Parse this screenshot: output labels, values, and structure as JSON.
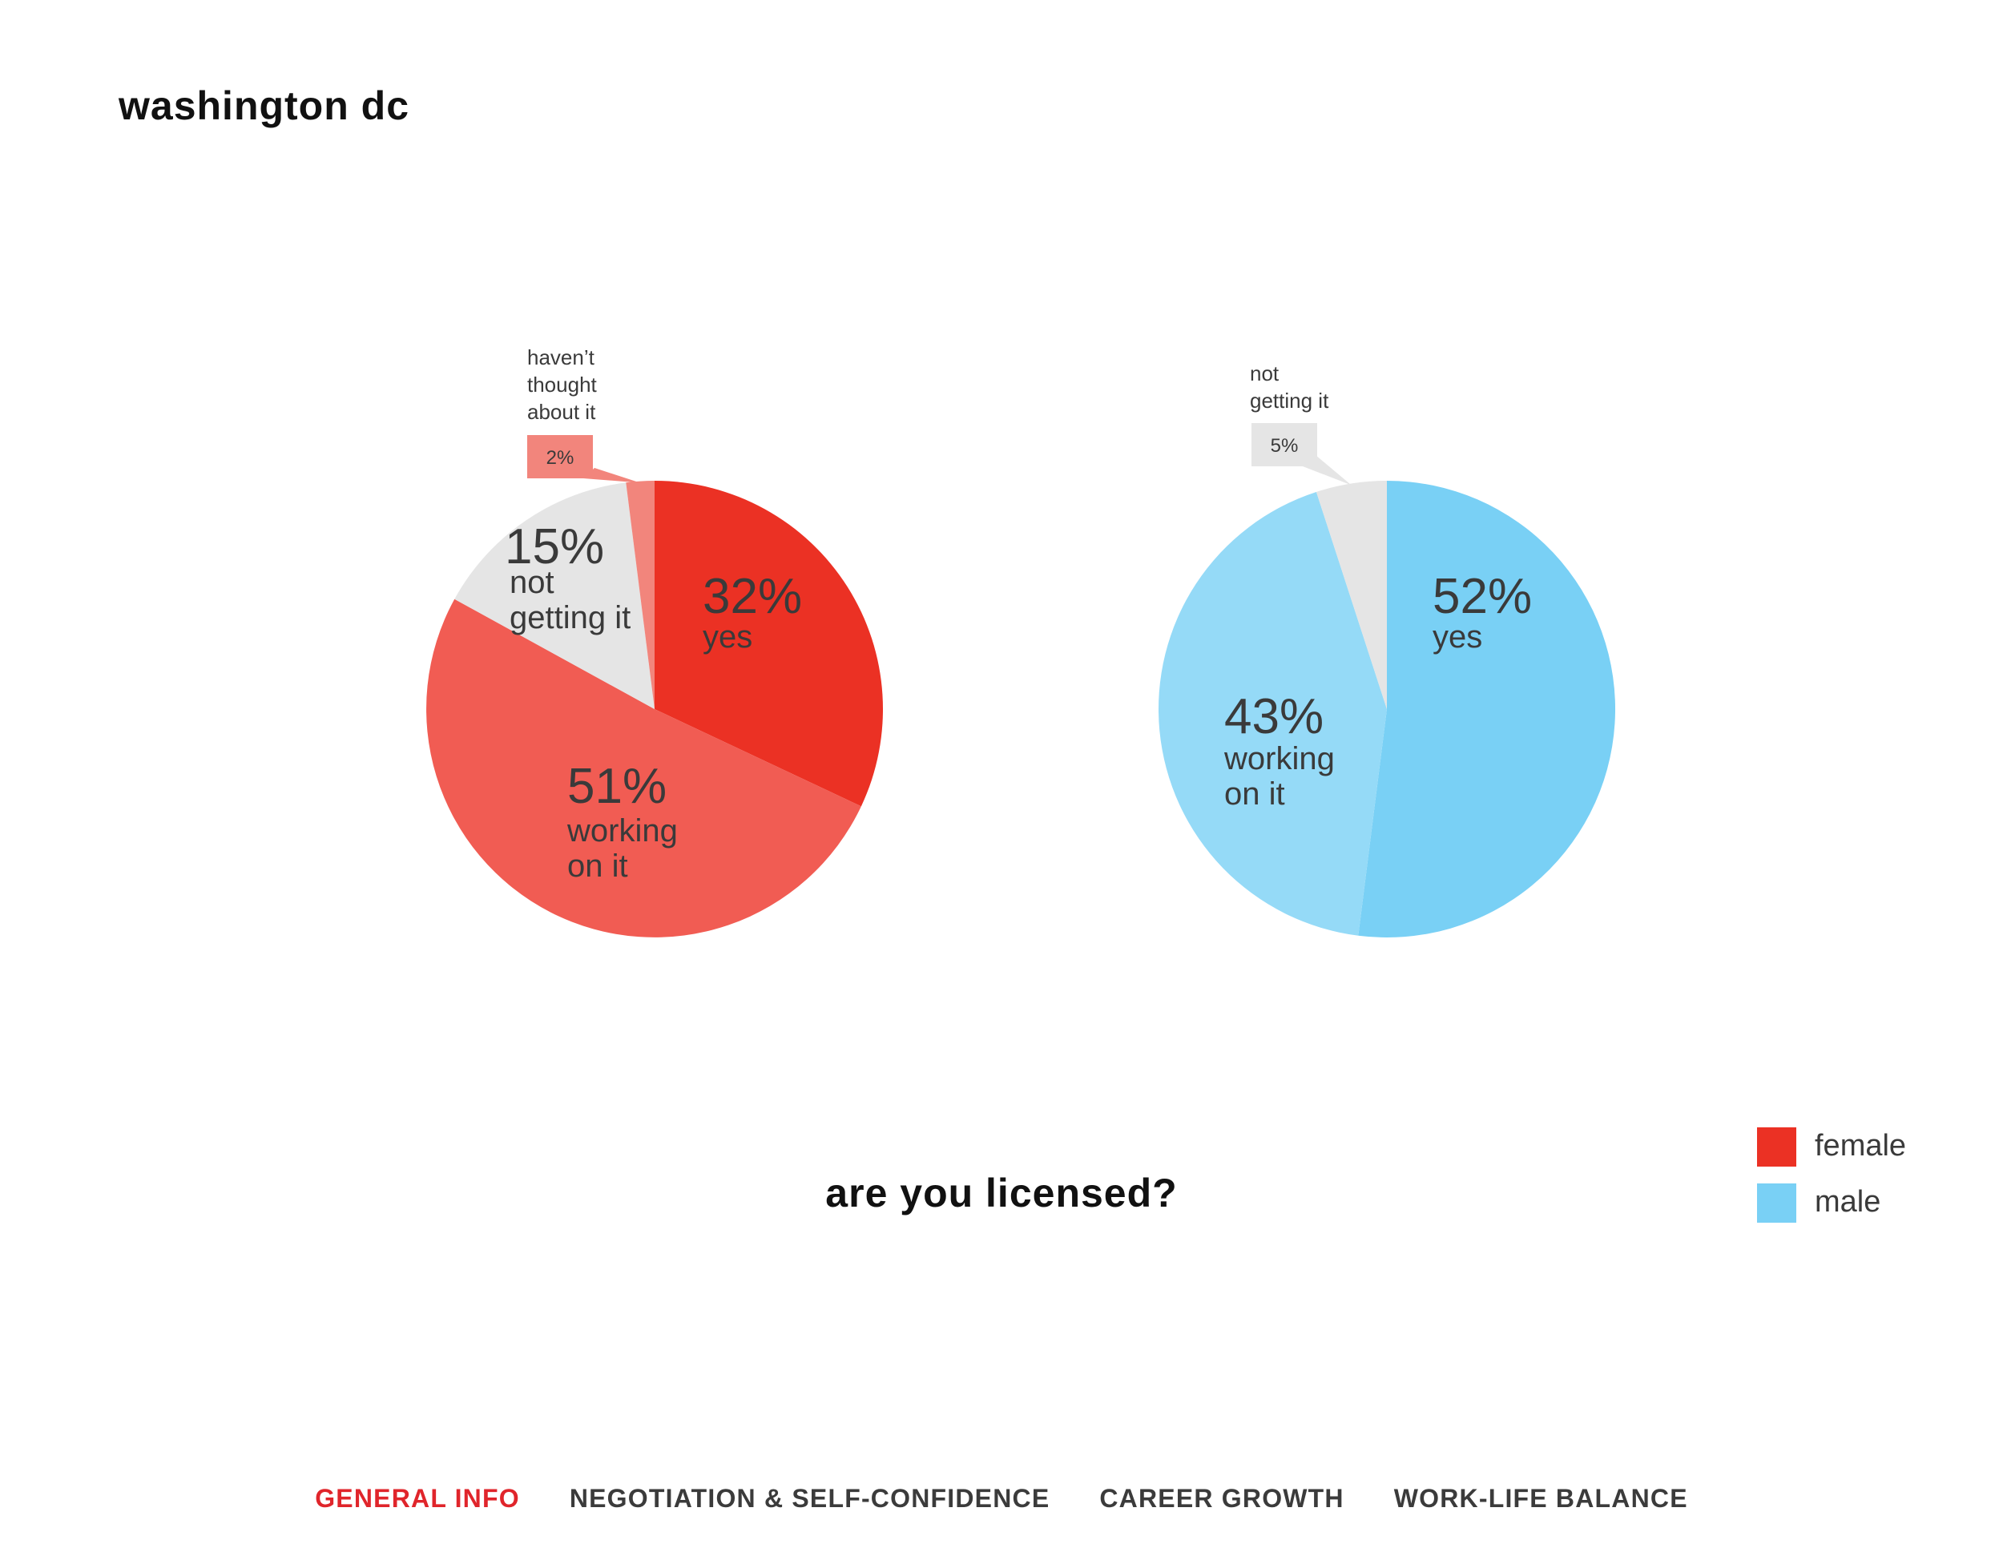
{
  "page": {
    "title": "washington dc",
    "question": "are you licensed?"
  },
  "nav": {
    "items": [
      {
        "label": "GENERAL INFO",
        "active": true
      },
      {
        "label": "NEGOTIATION & SELF-CONFIDENCE",
        "active": false
      },
      {
        "label": "CAREER GROWTH",
        "active": false
      },
      {
        "label": "WORK-LIFE BALANCE",
        "active": false
      }
    ]
  },
  "legend": [
    {
      "label": "female",
      "color": "#eb3124"
    },
    {
      "label": "male",
      "color": "#79d0f5"
    }
  ],
  "chart_data": [
    {
      "type": "pie",
      "title": "",
      "group": "female",
      "slices": [
        {
          "label": "yes",
          "value": 32,
          "pct_text": "32%",
          "color": "#eb3124"
        },
        {
          "label": "working on it",
          "value": 51,
          "pct_text": "51%",
          "color": "#f15c53"
        },
        {
          "label": "not getting it",
          "value": 15,
          "pct_text": "15%",
          "color": "#e5e5e5"
        },
        {
          "label": "haven’t thought about it",
          "value": 2,
          "pct_text": "2%",
          "color": "#f2857c"
        }
      ]
    },
    {
      "type": "pie",
      "title": "",
      "group": "male",
      "slices": [
        {
          "label": "yes",
          "value": 52,
          "pct_text": "52%",
          "color": "#79d0f5"
        },
        {
          "label": "working on it",
          "value": 43,
          "pct_text": "43%",
          "color": "#95daf7"
        },
        {
          "label": "not getting it",
          "value": 5,
          "pct_text": "5%",
          "color": "#e5e5e5"
        }
      ]
    }
  ]
}
